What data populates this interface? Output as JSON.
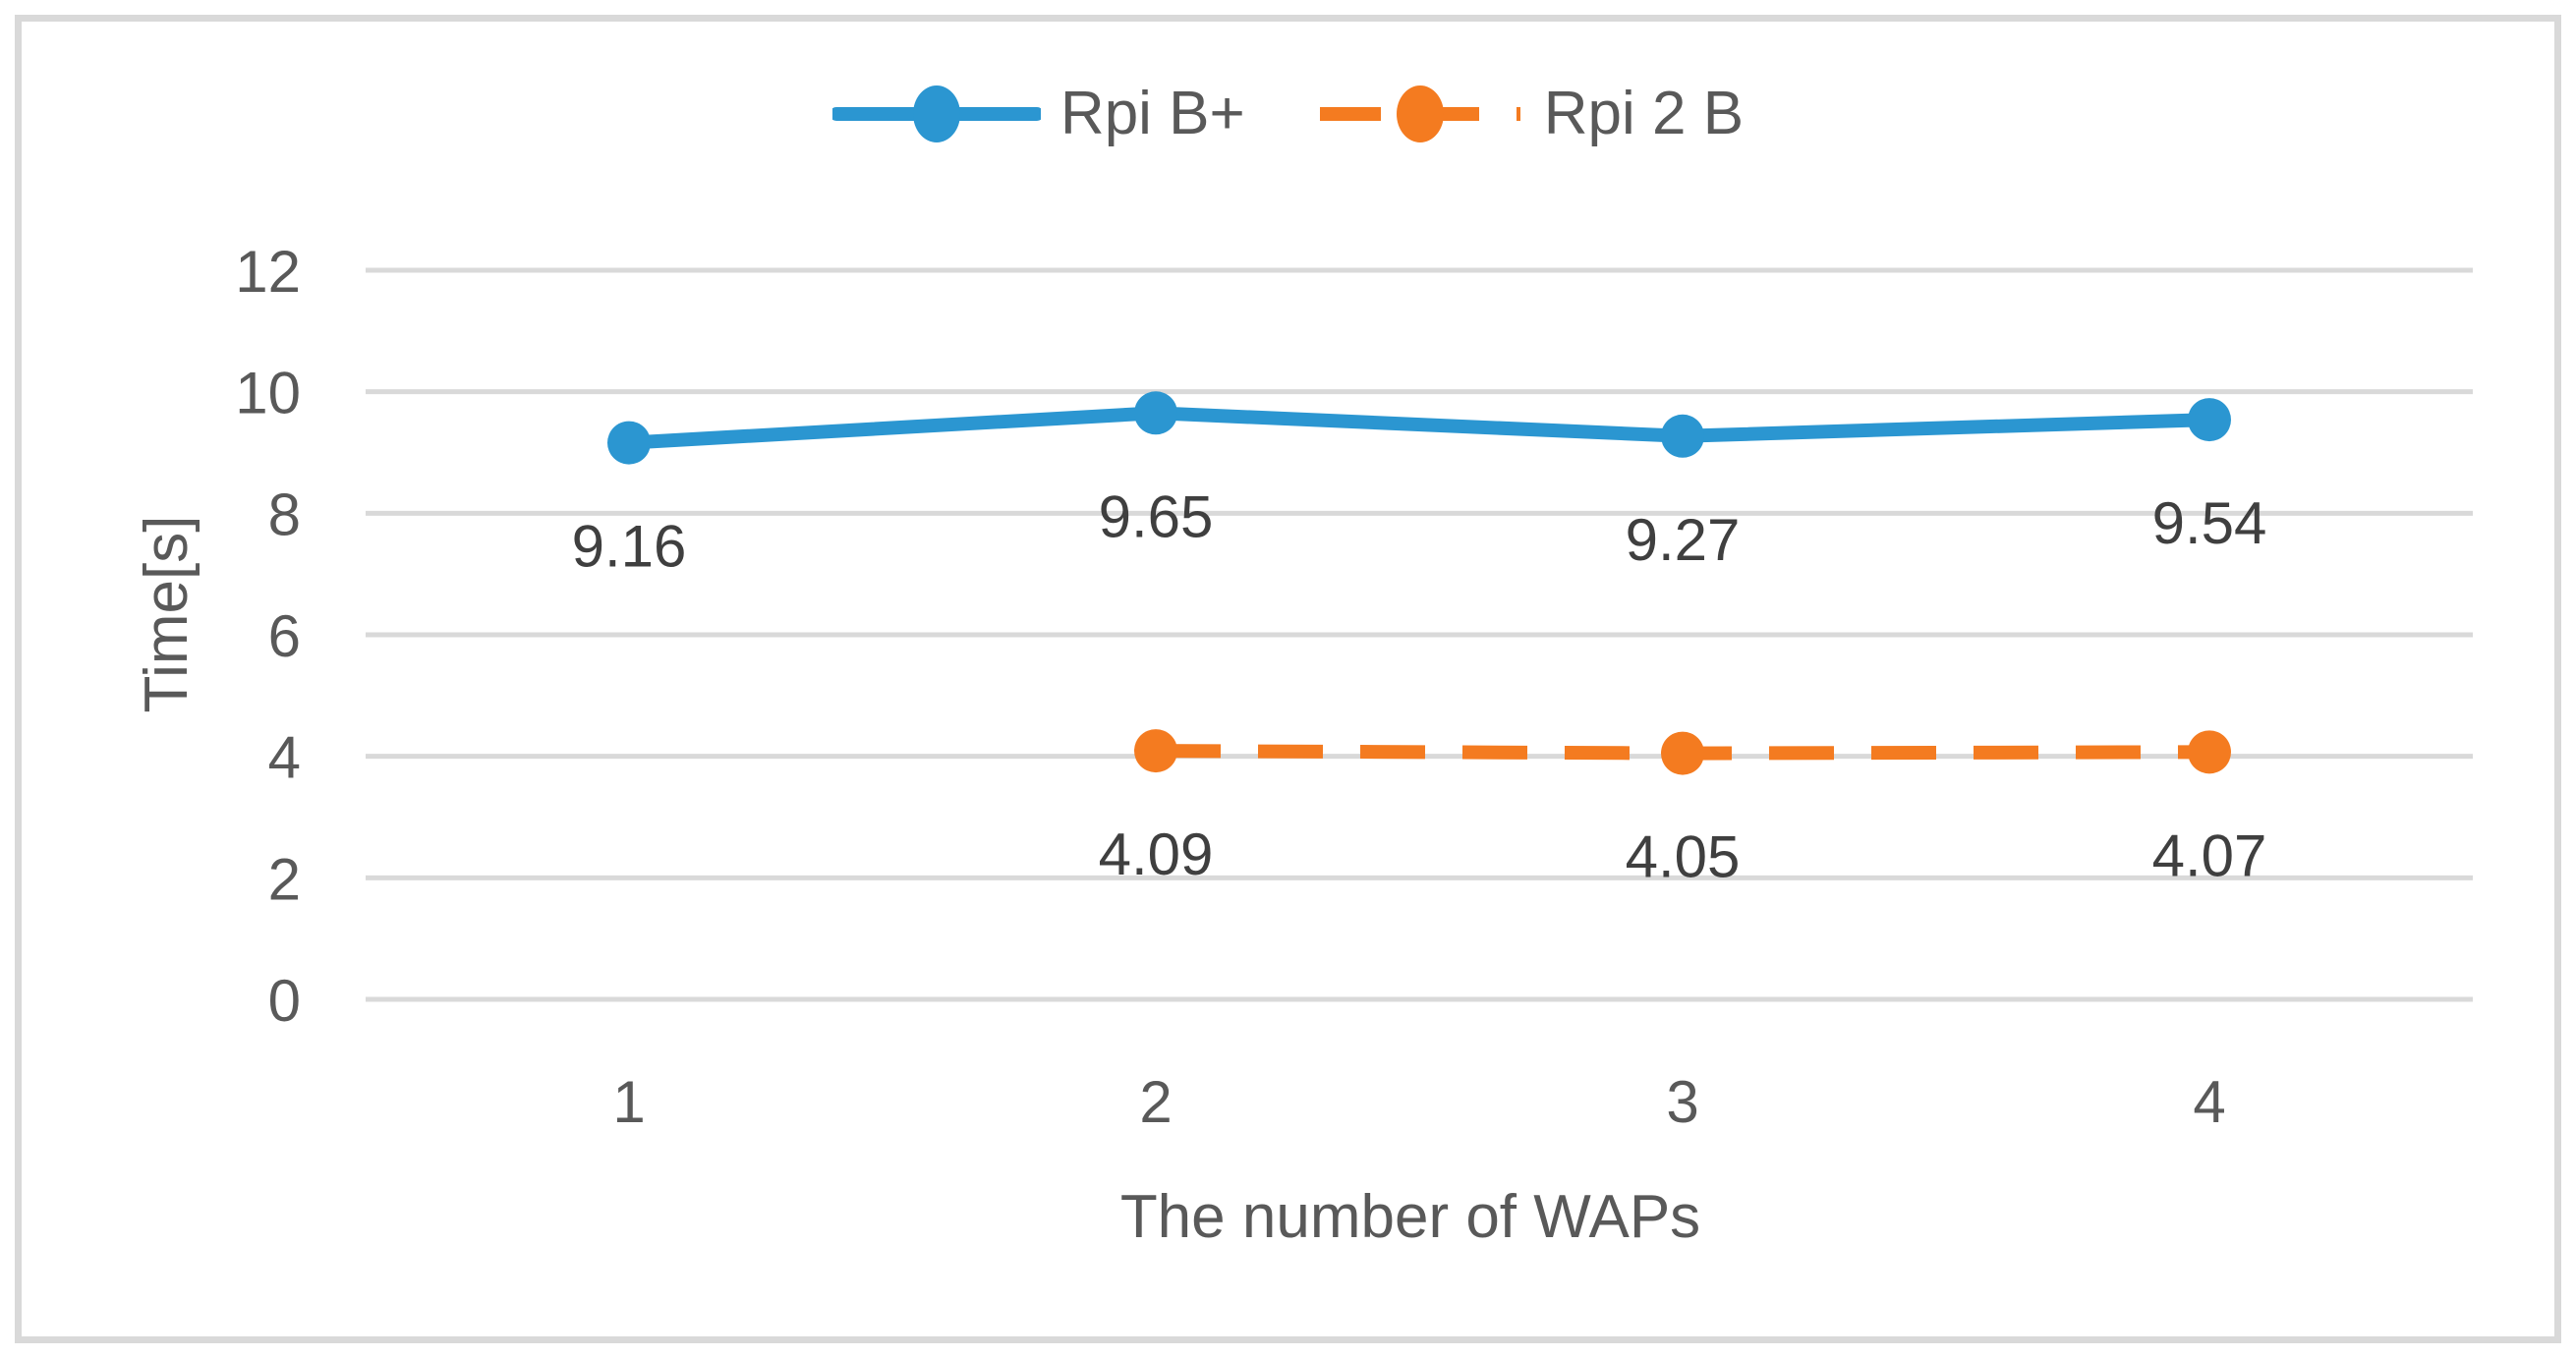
{
  "figure": {
    "background": "#FFFFFF",
    "border_color": "#D9D9D9"
  },
  "chart_data": {
    "type": "line",
    "categories": [
      "1",
      "2",
      "3",
      "4"
    ],
    "series": [
      {
        "name": "Rpi B+",
        "color": "#2B96D1",
        "dash": "solid",
        "values": [
          9.16,
          9.65,
          9.27,
          9.54
        ],
        "data_labels": [
          "9.16",
          "9.65",
          "9.27",
          "9.54"
        ]
      },
      {
        "name": "Rpi 2 B",
        "color": "#F47B20",
        "dash": "dashed",
        "values": [
          null,
          4.09,
          4.05,
          4.07
        ],
        "data_labels": [
          null,
          "4.09",
          "4.05",
          "4.07"
        ]
      }
    ],
    "xlabel": "The number of WAPs",
    "ylabel": "Time[s]",
    "ylim": [
      0,
      12
    ],
    "yticks": [
      0,
      2,
      4,
      6,
      8,
      10,
      12
    ],
    "grid": "horizontal",
    "legend_position": "top-center",
    "colors": {
      "gridline": "#D9D9D9",
      "tick_text": "#595959",
      "axis_title_text": "#595959",
      "data_label_text": "#3F3F3F",
      "legend_text": "#595959"
    }
  }
}
